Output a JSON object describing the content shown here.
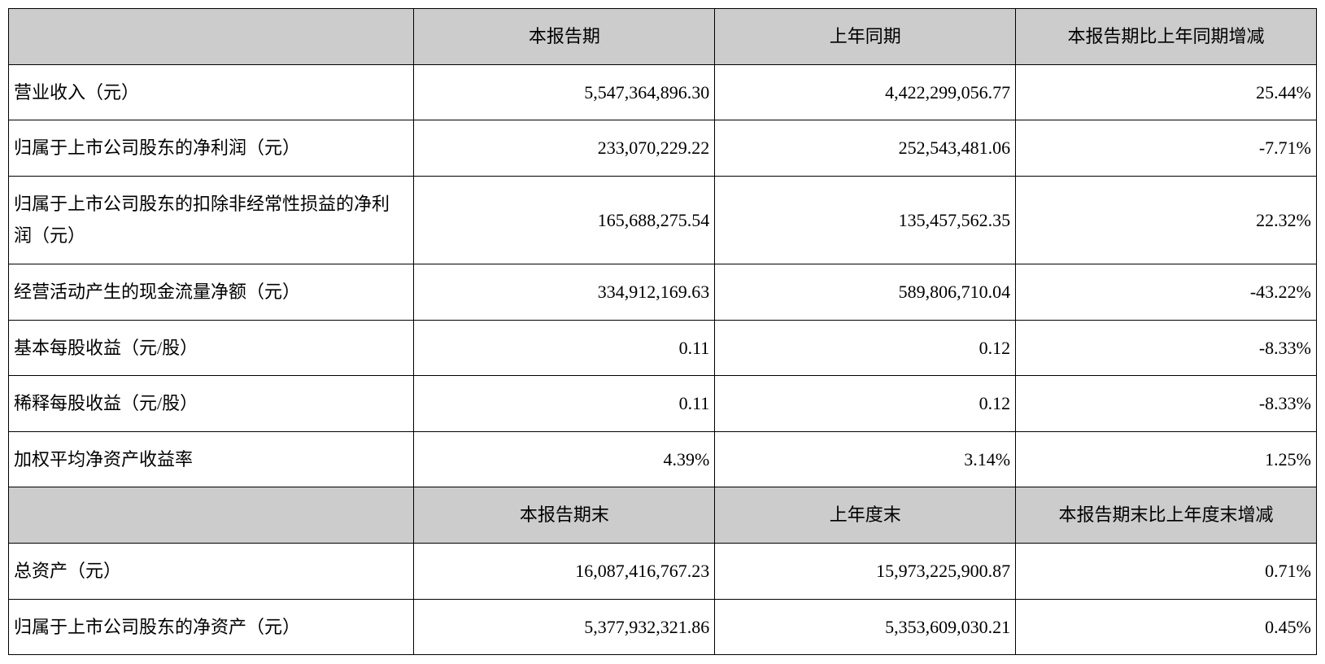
{
  "table": {
    "type": "table",
    "background_color": "#ffffff",
    "header_bg": "#cccccc",
    "border_color": "#000000",
    "font_family": "SimSun",
    "font_size": 22,
    "columns": [
      {
        "key": "label",
        "width_pct": 31,
        "align": "left"
      },
      {
        "key": "current",
        "width_pct": 23,
        "align": "right"
      },
      {
        "key": "prior",
        "width_pct": 23,
        "align": "right"
      },
      {
        "key": "change",
        "width_pct": 23,
        "align": "right"
      }
    ],
    "header1": {
      "blank": "",
      "col_current": "本报告期",
      "col_prior": "上年同期",
      "col_change": "本报告期比上年同期增减"
    },
    "rows1": [
      {
        "label": "营业收入（元）",
        "current": "5,547,364,896.30",
        "prior": "4,422,299,056.77",
        "change": "25.44%"
      },
      {
        "label": "归属于上市公司股东的净利润（元）",
        "current": "233,070,229.22",
        "prior": "252,543,481.06",
        "change": "-7.71%"
      },
      {
        "label": "归属于上市公司股东的扣除非经常性损益的净利润（元）",
        "current": "165,688,275.54",
        "prior": "135,457,562.35",
        "change": "22.32%"
      },
      {
        "label": "经营活动产生的现金流量净额（元）",
        "current": "334,912,169.63",
        "prior": "589,806,710.04",
        "change": "-43.22%"
      },
      {
        "label": "基本每股收益（元/股）",
        "current": "0.11",
        "prior": "0.12",
        "change": "-8.33%"
      },
      {
        "label": "稀释每股收益（元/股）",
        "current": "0.11",
        "prior": "0.12",
        "change": "-8.33%"
      },
      {
        "label": "加权平均净资产收益率",
        "current": "4.39%",
        "prior": "3.14%",
        "change": "1.25%"
      }
    ],
    "header2": {
      "blank": "",
      "col_current": "本报告期末",
      "col_prior": "上年度末",
      "col_change": "本报告期末比上年度末增减"
    },
    "rows2": [
      {
        "label": "总资产（元）",
        "current": "16,087,416,767.23",
        "prior": "15,973,225,900.87",
        "change": "0.71%"
      },
      {
        "label": "归属于上市公司股东的净资产（元）",
        "current": "5,377,932,321.86",
        "prior": "5,353,609,030.21",
        "change": "0.45%"
      }
    ]
  }
}
